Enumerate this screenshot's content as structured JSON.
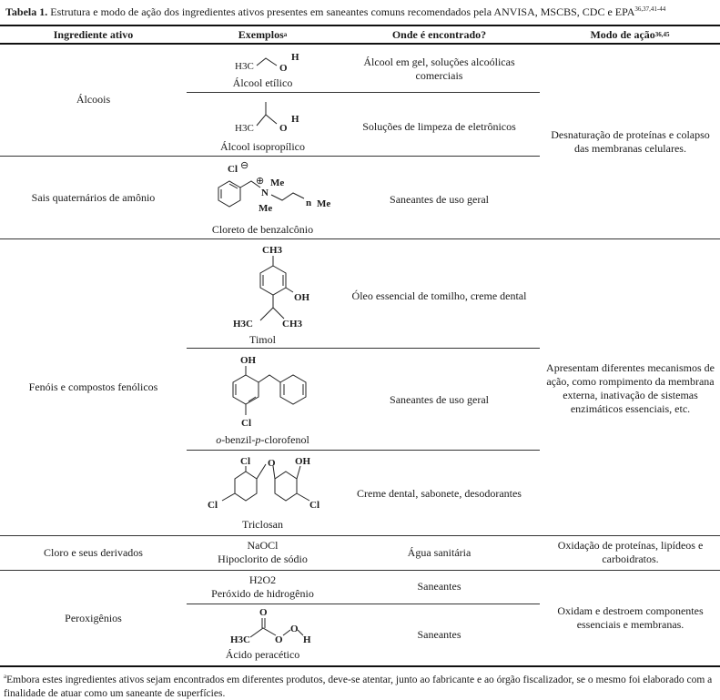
{
  "caption": {
    "label": "Tabela 1.",
    "text": " Estrutura e modo de ação dos ingredientes ativos presentes em saneantes comuns recomendados pela ANVISA, MSCBS, CDC e EPA",
    "refs": "36,37,41-44"
  },
  "headers": {
    "col1": "Ingrediente ativo",
    "col2": "Exemplos",
    "col2_sup": "a",
    "col3": "Onde é encontrado?",
    "col4": "Modo de ação",
    "col4_sup": "36,45"
  },
  "groups": [
    {
      "name": "Álcoois",
      "mode": "Desnaturação de proteínas e colapso das membranas celulares.",
      "examples": [
        {
          "name": "Álcool etílico",
          "where": "Álcool em gel, soluções alcoólicas comerciais",
          "labels": {
            "a": "H3C",
            "b": "O",
            "c": "H"
          }
        },
        {
          "name": "Álcool isopropílico",
          "where": "Soluções de limpeza de eletrônicos",
          "labels": {
            "a": "H3C",
            "b": "O",
            "c": "H"
          }
        }
      ]
    },
    {
      "name": "Sais quaternários de amônio",
      "examples": [
        {
          "name": "Cloreto de benzalcônio",
          "where": "Saneantes de uso geral",
          "labels": {
            "cl": "Cl",
            "plus": "⊕",
            "minus": "⊖",
            "n": "N",
            "me1": "Me",
            "me2": "Me",
            "me3": "Me",
            "sub": "n"
          }
        }
      ]
    },
    {
      "name": "Fenóis e compostos fenólicos",
      "mode": "Apresentam diferentes mecanismos de ação, como rompimento da membrana externa, inativação de sistemas enzimáticos essenciais, etc.",
      "examples": [
        {
          "name": "Timol",
          "where": "Óleo essencial de tomilho, creme dental",
          "labels": {
            "ch3": "CH3",
            "oh": "OH",
            "h3c": "H3C",
            "ch3b": "CH3"
          }
        },
        {
          "name_parts": [
            "o",
            "-benzil-",
            "p",
            "-clorofenol"
          ],
          "where": "Saneantes de uso geral",
          "labels": {
            "oh": "OH",
            "cl": "Cl"
          }
        },
        {
          "name": "Triclosan",
          "where": "Creme dental, sabonete, desodorantes",
          "labels": {
            "cl1": "Cl",
            "o": "O",
            "oh": "OH",
            "cl2": "Cl",
            "cl3": "Cl"
          }
        }
      ]
    },
    {
      "name": "Cloro e seus derivados",
      "mode": "Oxidação de proteínas, lipídeos e carboidratos.",
      "examples": [
        {
          "formula": "NaOCl",
          "name": "Hipoclorito de sódio",
          "where": "Água sanitária"
        }
      ]
    },
    {
      "name": "Peroxigênios",
      "mode": "Oxidam e destroem componentes essenciais e membranas.",
      "examples": [
        {
          "formula": "H2O2",
          "name": "Peróxido de hidrogênio",
          "where": "Saneantes"
        },
        {
          "name": "Ácido peracético",
          "where": "Saneantes",
          "labels": {
            "o1": "O",
            "h3c": "H3C",
            "o2": "O",
            "o3": "O",
            "h": "H"
          }
        }
      ]
    }
  ],
  "footnote": {
    "sup": "a",
    "text": "Embora estes ingredientes ativos sejam encontrados em diferentes produtos, deve-se atentar, junto ao fabricante e ao órgão fiscalizador, se o mesmo foi elaborado com a finalidade de atuar como um saneante de superfícies."
  }
}
